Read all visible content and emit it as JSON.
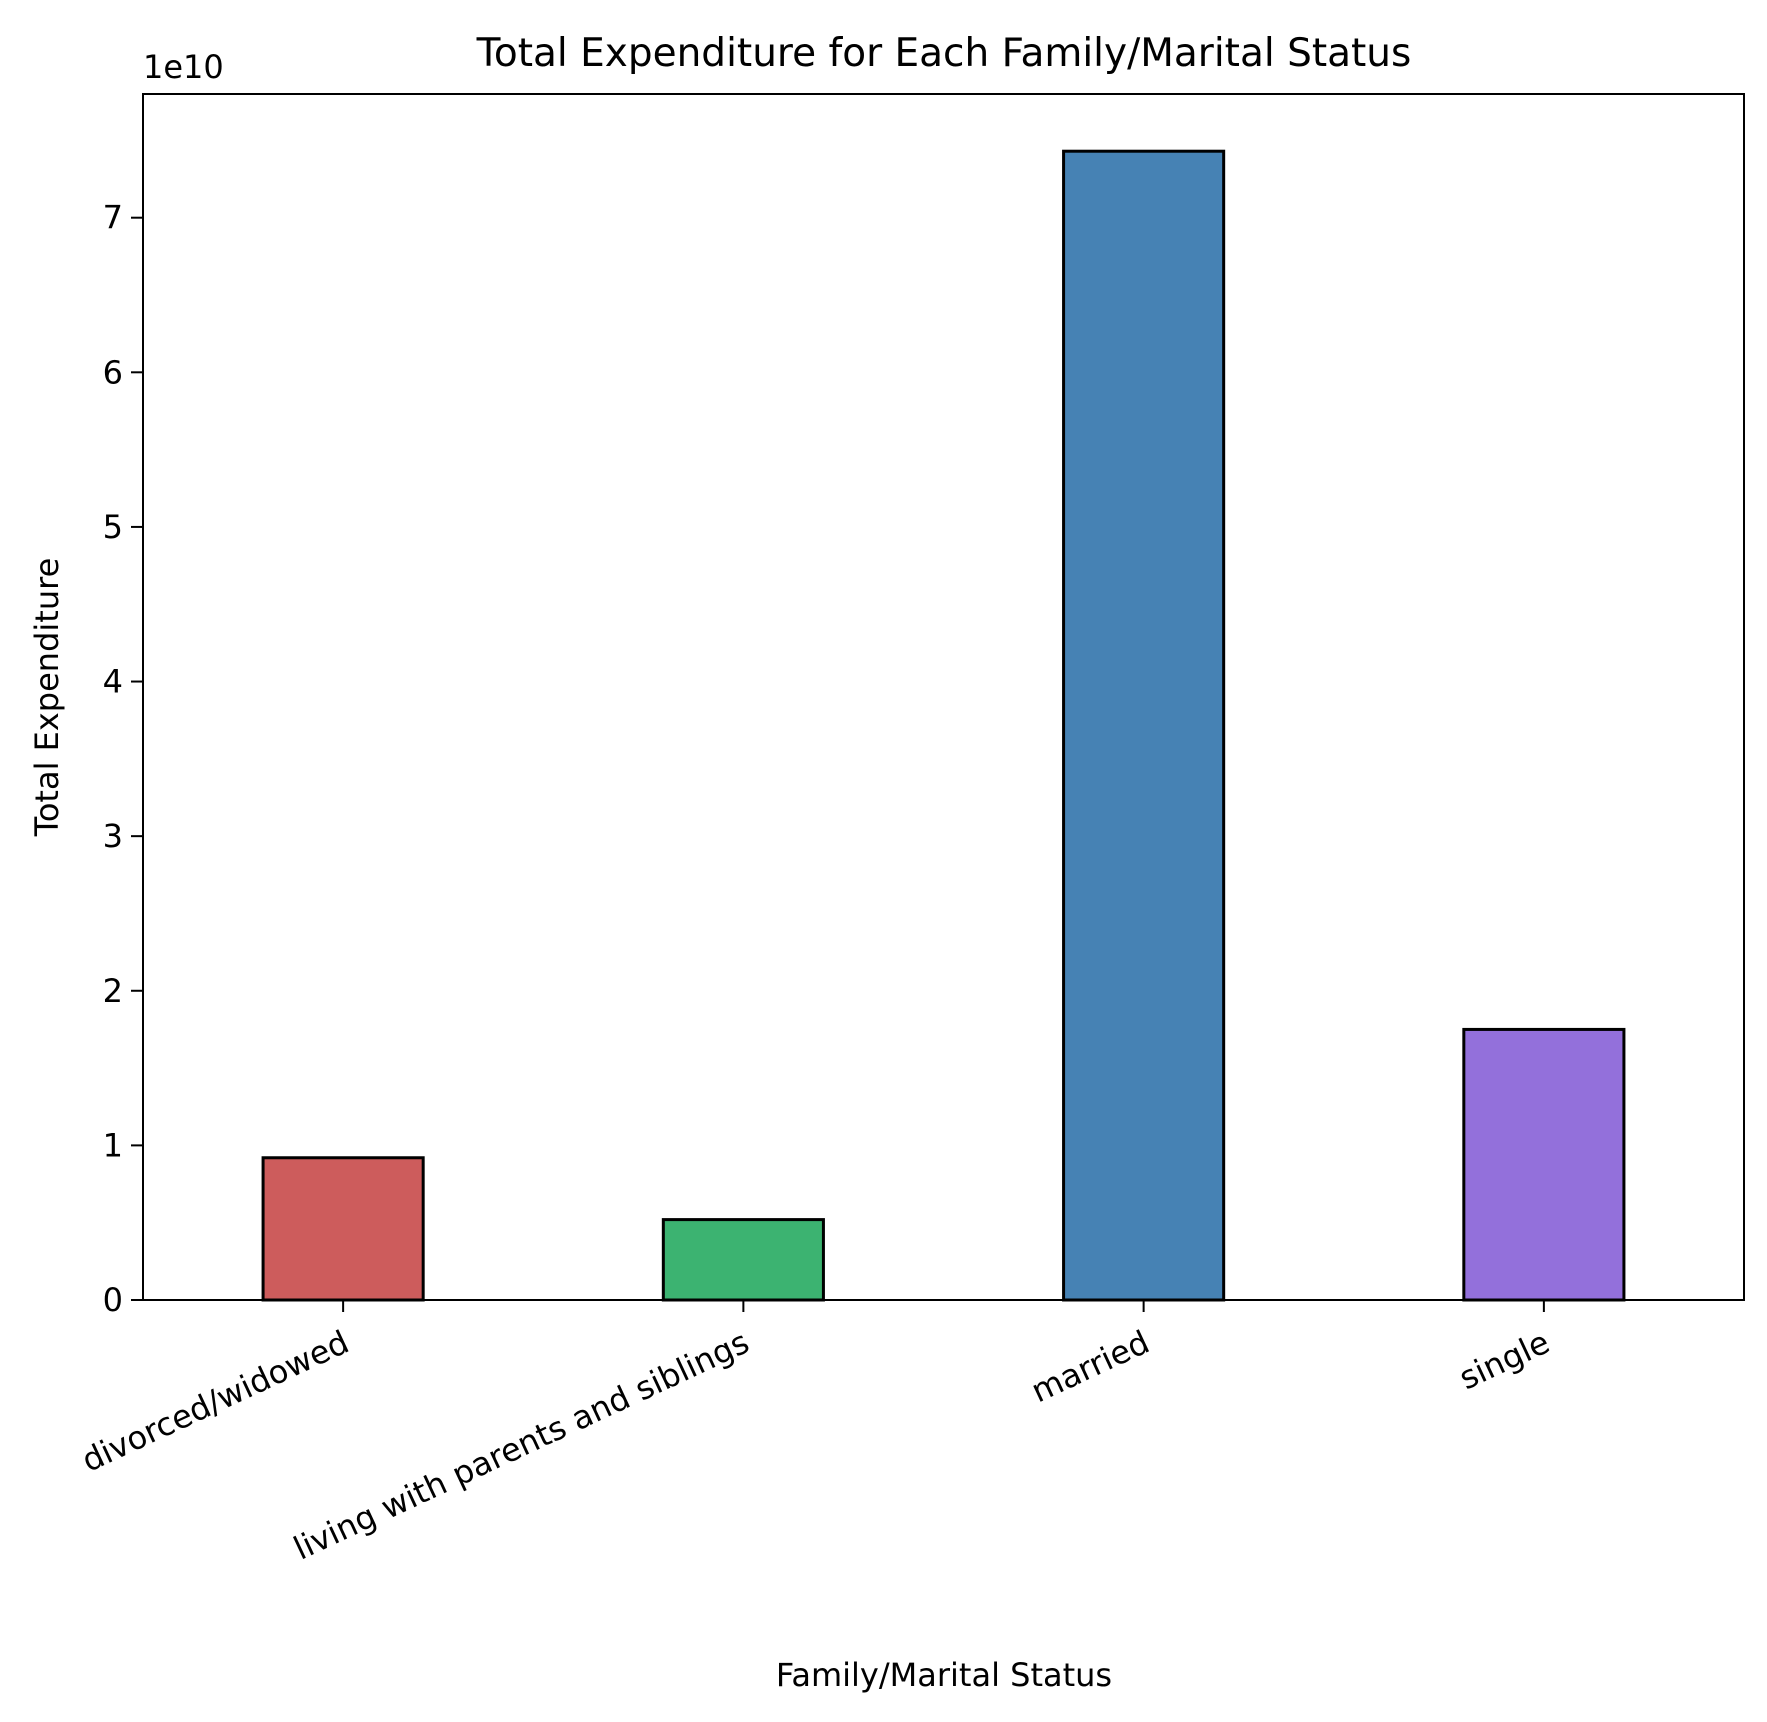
{
  "chart_data": {
    "type": "bar",
    "title": "Total Expenditure for Each Family/Marital Status",
    "xlabel": "Family/Marital Status",
    "ylabel": "Total Expenditure",
    "y_offset_label": "1e10",
    "y_scale": 10000000000,
    "categories": [
      "divorced/widowed",
      "living with parents and siblings",
      "married",
      "single"
    ],
    "values": [
      9200000000,
      5200000000,
      74300000000,
      17500000000
    ],
    "colors": [
      "#cd5c5c",
      "#3cb371",
      "#4682b4",
      "#9370db"
    ],
    "ylim": [
      0,
      78000000000
    ],
    "yticks": [
      0,
      1,
      2,
      3,
      4,
      5,
      6,
      7
    ],
    "grid": false,
    "legend": "none",
    "xtick_rotation": -25
  }
}
